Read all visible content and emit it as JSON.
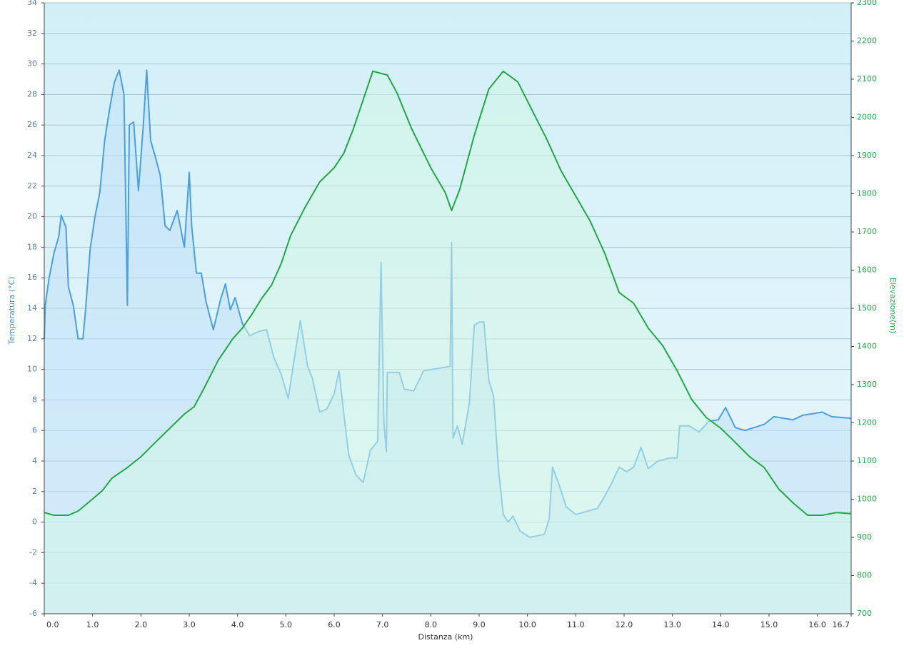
{
  "chart_data": {
    "type": "line",
    "xlabel": "Distanza  (km)",
    "ylabel": "Temperatura (°C)",
    "y2label": "Elevazione(m)",
    "xlim": [
      0,
      16.7
    ],
    "xticks": [
      {
        "value": 0,
        "label": "0.0"
      },
      {
        "value": 1,
        "label": "1.0"
      },
      {
        "value": 2,
        "label": "2.0"
      },
      {
        "value": 3,
        "label": "3.0"
      },
      {
        "value": 4,
        "label": "4.0"
      },
      {
        "value": 5,
        "label": "5.0"
      },
      {
        "value": 6,
        "label": "6.0"
      },
      {
        "value": 7,
        "label": "7.0"
      },
      {
        "value": 8,
        "label": "8.0"
      },
      {
        "value": 9,
        "label": "9.0"
      },
      {
        "value": 10,
        "label": "10.0"
      },
      {
        "value": 11,
        "label": "11.0"
      },
      {
        "value": 12,
        "label": "12.0"
      },
      {
        "value": 13,
        "label": "13.0"
      },
      {
        "value": 14,
        "label": "14.0"
      },
      {
        "value": 15,
        "label": "15.0"
      },
      {
        "value": 16,
        "label": "16.0"
      },
      16.7
    ],
    "ylim": [
      -6,
      34
    ],
    "yticks": [
      -6,
      -4,
      -2,
      0,
      2,
      4,
      6,
      8,
      10,
      12,
      14,
      16,
      18,
      20,
      22,
      24,
      26,
      28,
      30,
      32,
      34
    ],
    "y2lim": [
      700,
      2300
    ],
    "y2ticks": [
      700,
      800,
      900,
      1000,
      1100,
      1200,
      1300,
      1400,
      1500,
      1600,
      1700,
      1800,
      1900,
      2000,
      2100,
      2200,
      2300
    ],
    "grid": true,
    "series": [
      {
        "name": "Temperatura",
        "color": "#4a9fe3",
        "fill": "#bfe0f7",
        "x": [
          0,
          0.02,
          0.1,
          0.2,
          0.3,
          0.35,
          0.45,
          0.5,
          0.6,
          0.7,
          0.8,
          0.85,
          0.95,
          1.05,
          1.15,
          1.25,
          1.35,
          1.45,
          1.55,
          1.65,
          1.72,
          1.76,
          1.85,
          1.95,
          2.05,
          2.12,
          2.2,
          2.3,
          2.4,
          2.5,
          2.6,
          2.75,
          2.9,
          3.0,
          3.05,
          3.15,
          3.25,
          3.35,
          3.5,
          3.65,
          3.75,
          3.85,
          3.95,
          4.1,
          4.25,
          4.45,
          4.6,
          4.75,
          4.9,
          5.05,
          5.15,
          5.3,
          5.45,
          5.55,
          5.7,
          5.85,
          6.0,
          6.1,
          6.2,
          6.3,
          6.45,
          6.6,
          6.75,
          6.9,
          6.97,
          7.03,
          7.08,
          7.1,
          7.35,
          7.45,
          7.65,
          7.85,
          8.4,
          8.43,
          8.46,
          8.55,
          8.65,
          8.8,
          8.9,
          9.0,
          9.1,
          9.2,
          9.3,
          9.4,
          9.5,
          9.6,
          9.7,
          9.85,
          10.05,
          10.35,
          10.45,
          10.52,
          10.65,
          10.8,
          11.0,
          11.45,
          11.6,
          11.75,
          11.9,
          12.05,
          12.2,
          12.35,
          12.5,
          12.7,
          12.95,
          13.1,
          13.15,
          13.35,
          13.55,
          13.75,
          13.95,
          14.1,
          14.3,
          14.5,
          14.7,
          14.9,
          15.1,
          15.3,
          15.5,
          15.7,
          15.9,
          16.1,
          16.3,
          16.7
        ],
        "values": [
          12,
          14.2,
          16,
          17.6,
          18.7,
          20.1,
          19.3,
          15.4,
          14.2,
          12,
          12,
          13.7,
          17.9,
          20,
          21.6,
          25,
          27,
          28.8,
          29.6,
          28,
          14.2,
          26,
          26.2,
          21.7,
          26,
          29.6,
          25,
          23.9,
          22.7,
          19.4,
          19.1,
          20.4,
          18,
          22.9,
          19.4,
          16.3,
          16.3,
          14.4,
          12.6,
          14.6,
          15.6,
          13.9,
          14.7,
          13,
          12.2,
          12.5,
          12.6,
          10.8,
          9.7,
          8.1,
          10.2,
          13.2,
          10.2,
          9.4,
          7.2,
          7.4,
          8.4,
          9.9,
          7.1,
          4.4,
          3.1,
          2.6,
          4.7,
          5.3,
          17,
          6.5,
          4.6,
          9.8,
          9.8,
          8.7,
          8.6,
          9.9,
          10.2,
          18.3,
          5.5,
          6.3,
          5.1,
          7.8,
          12.9,
          13.1,
          13.1,
          9.3,
          8.2,
          3.5,
          0.5,
          0,
          0.4,
          -0.6,
          -1,
          -0.8,
          0.2,
          3.6,
          2.5,
          1,
          0.5,
          0.9,
          1.7,
          2.6,
          3.6,
          3.3,
          3.6,
          4.9,
          3.5,
          4,
          4.2,
          4.2,
          6.3,
          6.3,
          5.9,
          6.6,
          6.7,
          7.5,
          6.2,
          6,
          6.2,
          6.4,
          6.9,
          6.8,
          6.7,
          7,
          7.1,
          7.2,
          6.9,
          6.8
        ]
      },
      {
        "name": "Elevazione",
        "color": "#21a846",
        "fill": "#d2f5e6",
        "axis": "y2",
        "x": [
          0,
          0.2,
          0.5,
          0.7,
          0.9,
          1.2,
          1.4,
          1.7,
          2.0,
          2.3,
          2.6,
          2.9,
          3.1,
          3.3,
          3.6,
          3.9,
          4.1,
          4.3,
          4.5,
          4.7,
          4.9,
          5.1,
          5.4,
          5.7,
          6.0,
          6.2,
          6.4,
          6.6,
          6.8,
          7.1,
          7.3,
          7.6,
          8.0,
          8.3,
          8.43,
          8.6,
          8.9,
          9.2,
          9.5,
          9.8,
          10.1,
          10.4,
          10.7,
          11.0,
          11.3,
          11.6,
          11.9,
          12.2,
          12.5,
          12.8,
          13.1,
          13.4,
          13.7,
          14.0,
          14.3,
          14.6,
          14.9,
          15.2,
          15.5,
          15.8,
          16.1,
          16.4,
          16.7
        ],
        "values": [
          965,
          958,
          958,
          969,
          990,
          1022,
          1055,
          1081,
          1111,
          1149,
          1186,
          1223,
          1242,
          1289,
          1364,
          1420,
          1448,
          1485,
          1526,
          1560,
          1616,
          1691,
          1765,
          1831,
          1868,
          1906,
          1971,
          2046,
          2121,
          2111,
          2064,
          1971,
          1868,
          1803,
          1756,
          1812,
          1953,
          2074,
          2121,
          2093,
          2018,
          1943,
          1859,
          1794,
          1728,
          1644,
          1541,
          1513,
          1448,
          1402,
          1336,
          1261,
          1214,
          1186,
          1149,
          1111,
          1083,
          1027,
          990,
          958,
          958,
          965,
          962
        ]
      }
    ]
  }
}
